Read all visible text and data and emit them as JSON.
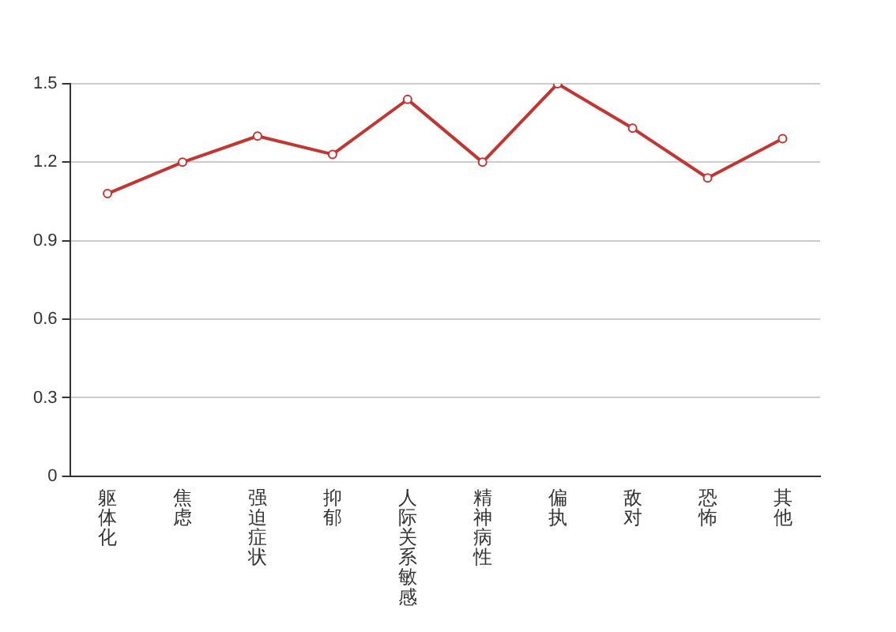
{
  "chart_data": {
    "type": "line",
    "categories": [
      "躯体化",
      "焦虑",
      "强迫症状",
      "抑郁",
      "人际关系敏感",
      "精神病性",
      "偏执",
      "敌对",
      "恐怖",
      "其他"
    ],
    "series": [
      {
        "color": "#c23531",
        "values": [
          1.08,
          1.2,
          1.3,
          1.23,
          1.44,
          1.2,
          1.5,
          1.33,
          1.14,
          1.29
        ]
      }
    ],
    "ylim": [
      0,
      1.5
    ],
    "yticks": [
      0,
      0.3,
      0.6,
      0.9,
      1.2,
      1.5
    ],
    "grid": "y",
    "marker": "circle",
    "line_style": "solid",
    "legend": false
  }
}
